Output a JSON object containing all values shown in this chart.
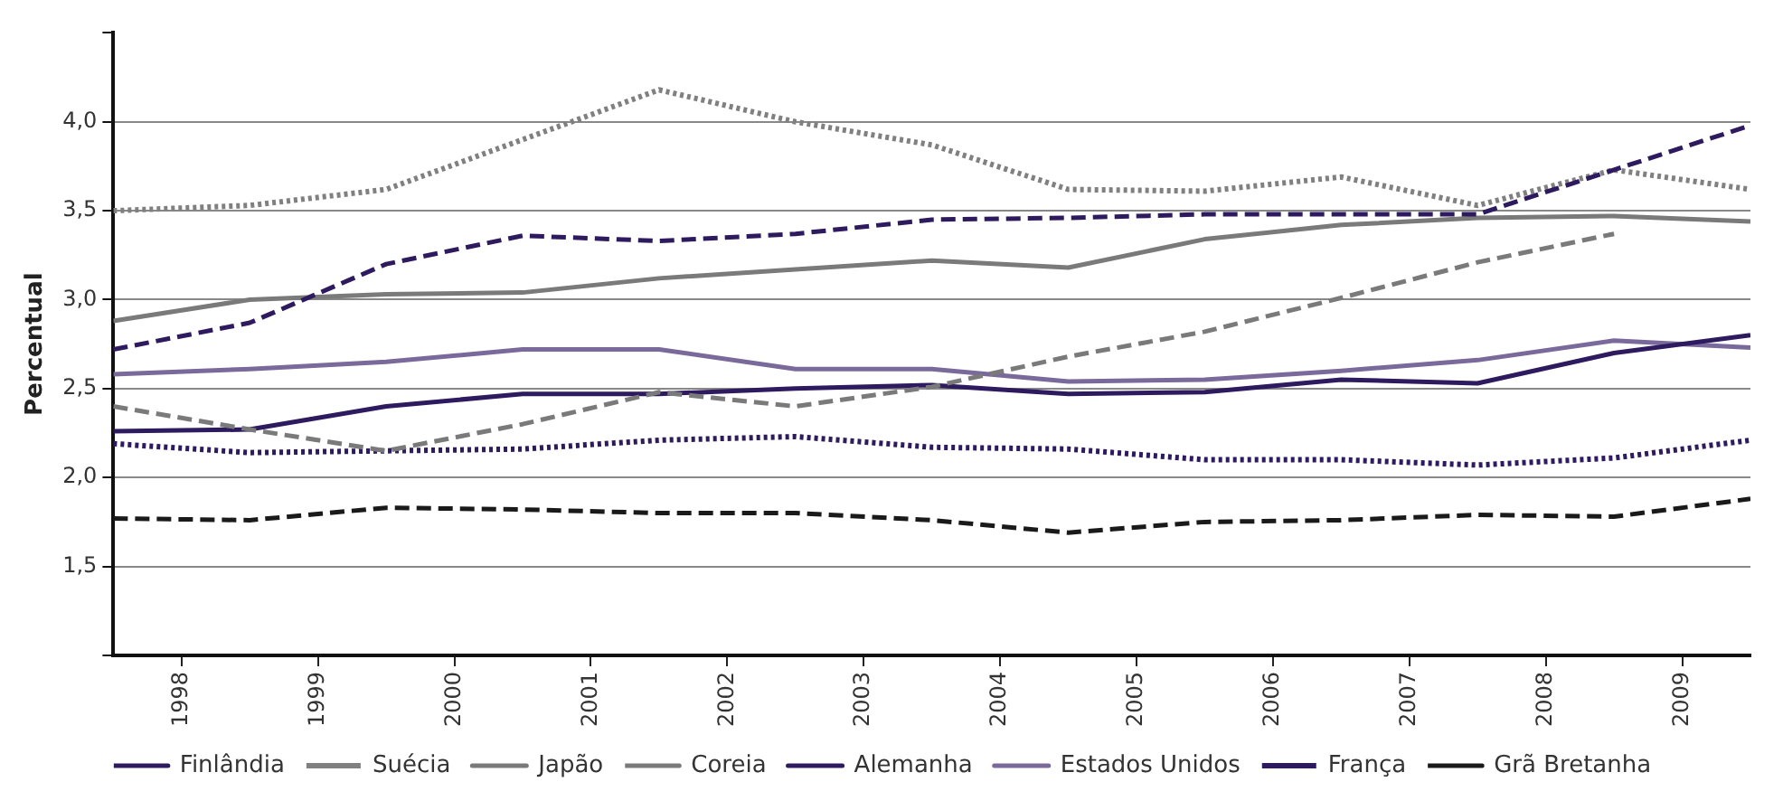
{
  "chart_data": {
    "type": "line",
    "ylabel": "Percentual",
    "x": [
      1997.5,
      1998.5,
      1999.5,
      2000.5,
      2001.5,
      2002.5,
      2003.5,
      2004.5,
      2005.5,
      2006.5,
      2007.5,
      2008.5,
      2009.5
    ],
    "xlim": [
      1997.5,
      2009.5
    ],
    "xticks": [
      1998,
      1999,
      2000,
      2001,
      2002,
      2003,
      2004,
      2005,
      2006,
      2007,
      2008,
      2009
    ],
    "ylim": [
      1,
      4.5
    ],
    "yticks": [
      {
        "value": 1,
        "label": null
      },
      {
        "value": 1.5,
        "label": "1,5"
      },
      {
        "value": 2,
        "label": "2,0"
      },
      {
        "value": 2.5,
        "label": "2,5"
      },
      {
        "value": 3,
        "label": "3,0"
      },
      {
        "value": 3.5,
        "label": "3,5"
      },
      {
        "value": 4,
        "label": "4,0"
      },
      {
        "value": 4.5,
        "label": null
      }
    ],
    "grid": "y",
    "legend": "bottom",
    "marker": "none",
    "series": [
      {
        "name": "Finlândia",
        "color": "#2e1a5e",
        "line_style": "dashed",
        "values": [
          2.72,
          2.87,
          3.2,
          3.36,
          3.33,
          3.37,
          3.45,
          3.46,
          3.48,
          3.48,
          3.48,
          3.73,
          3.98
        ]
      },
      {
        "name": "Suécia",
        "color": "#808080",
        "line_style": "dotted",
        "values": [
          3.5,
          3.53,
          3.62,
          3.9,
          4.18,
          4.0,
          3.87,
          3.62,
          3.61,
          3.69,
          3.53,
          3.73,
          3.62
        ]
      },
      {
        "name": "Japão",
        "color": "#7a7a7a",
        "line_style": "solid",
        "values": [
          2.88,
          3.0,
          3.03,
          3.04,
          3.12,
          3.17,
          3.22,
          3.18,
          3.34,
          3.42,
          3.46,
          3.47,
          3.44
        ]
      },
      {
        "name": "Coreia",
        "color": "#7a7a7a",
        "line_style": "dashed",
        "values": [
          2.4,
          2.27,
          2.15,
          2.3,
          2.48,
          2.4,
          2.51,
          2.68,
          2.82,
          3.01,
          3.21,
          3.37,
          null
        ]
      },
      {
        "name": "Alemanha",
        "color": "#2e1a5e",
        "line_style": "solid",
        "values": [
          2.26,
          2.27,
          2.4,
          2.47,
          2.47,
          2.5,
          2.52,
          2.47,
          2.48,
          2.55,
          2.53,
          2.7,
          2.8
        ]
      },
      {
        "name": "Estados Unidos",
        "color": "#7a6a9c",
        "line_style": "solid",
        "values": [
          2.58,
          2.61,
          2.65,
          2.72,
          2.72,
          2.61,
          2.61,
          2.54,
          2.55,
          2.6,
          2.66,
          2.77,
          2.73
        ]
      },
      {
        "name": "França",
        "color": "#2e1a5e",
        "line_style": "dotted",
        "values": [
          2.19,
          2.14,
          2.15,
          2.16,
          2.21,
          2.23,
          2.17,
          2.16,
          2.1,
          2.1,
          2.07,
          2.11,
          2.21
        ]
      },
      {
        "name": "Grã Bretanha",
        "color": "#1a1a1a",
        "line_style": "dashed",
        "values": [
          1.77,
          1.76,
          1.83,
          1.82,
          1.8,
          1.8,
          1.76,
          1.69,
          1.75,
          1.76,
          1.79,
          1.78,
          1.88
        ]
      }
    ]
  }
}
